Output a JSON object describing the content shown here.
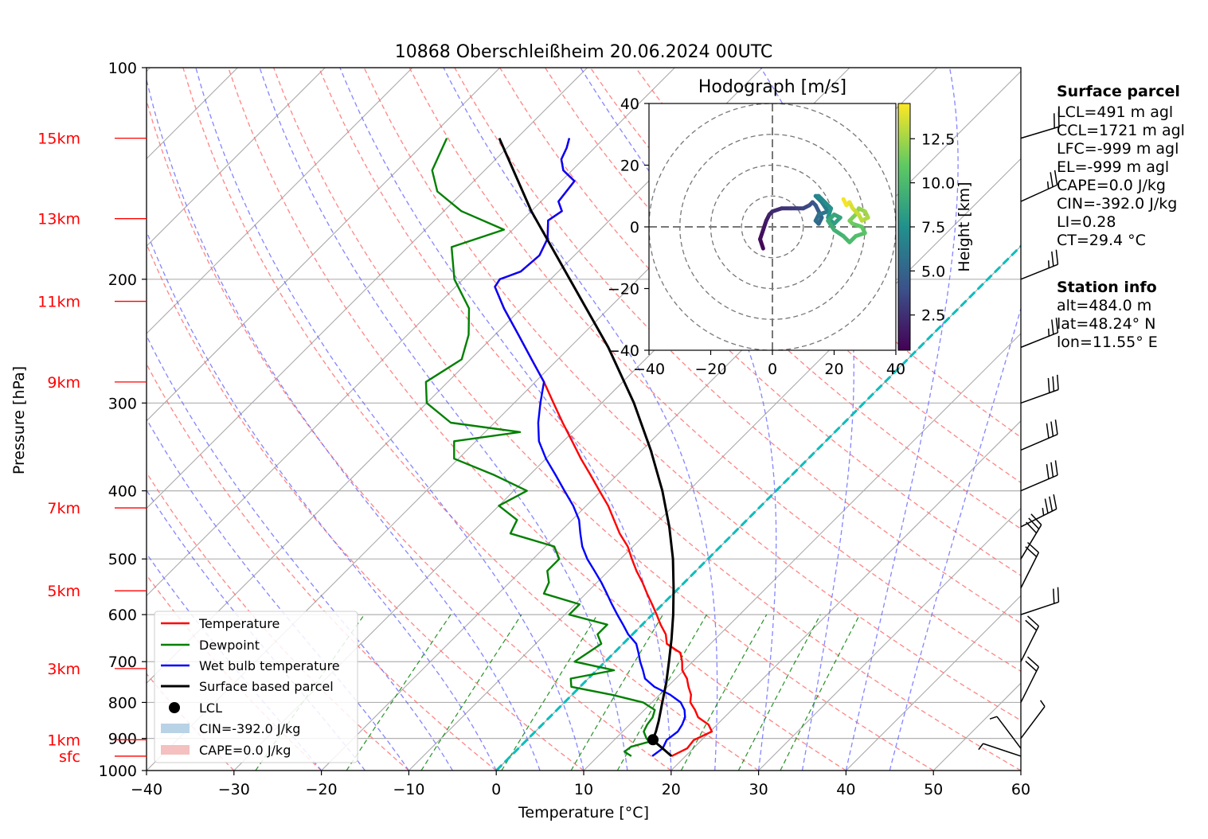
{
  "title": "10868 Oberschleißheim 20.06.2024 00UTC",
  "xlabel": "Temperature [°C]",
  "ylabel": "Pressure [hPa]",
  "colors": {
    "temperature": "#ff0000",
    "dewpoint": "#008000",
    "wetbulb": "#0000ff",
    "parcel": "#000000",
    "zero_isotherm": "#00bfbf",
    "dry_adiabat": "#ff6666",
    "moist_adiabat": "#6666ff",
    "mixing_ratio": "#008000",
    "isotherm": "#999999",
    "cin": "#b9d3e6",
    "cape": "#f4c0c0"
  },
  "height_labels": [
    "15km",
    "13km",
    "11km",
    "9km",
    "7km",
    "5km",
    "3km",
    "1km",
    "sfc"
  ],
  "legend": {
    "items": [
      "Temperature",
      "Dewpoint",
      "Wet bulb temperature",
      "Surface based parcel",
      "LCL",
      "CIN=-392.0 J/kg",
      "CAPE=0.0 J/kg"
    ]
  },
  "surface_parcel": {
    "heading": "Surface parcel",
    "lines": [
      "LCL=491 m agl",
      "CCL=1721 m agl",
      "LFC=-999 m agl",
      "EL=-999 m agl",
      "CAPE=0.0 J/kg",
      "CIN=-392.0 J/kg",
      "LI=0.28",
      "CT=29.4 °C"
    ]
  },
  "station_info": {
    "heading": "Station info",
    "lines": [
      "alt=484.0 m",
      "lat=48.24° N",
      "lon=11.55° E"
    ]
  },
  "hodograph": {
    "title": "Hodograph [m/s]",
    "colorbar_label": "Height [km]",
    "colorbar_ticks": [
      "2.5",
      "5.0",
      "7.5",
      "10.0",
      "12.5"
    ],
    "axis_ticks": [
      "−40",
      "−20",
      "0",
      "20",
      "40"
    ],
    "y_ticks": [
      "40",
      "20",
      "0",
      "−20",
      "−40"
    ]
  },
  "chart_data": {
    "type": "skew-t",
    "title": "10868 Oberschleißheim 20.06.2024 00UTC",
    "xlabel": "Temperature [°C]",
    "ylabel": "Pressure [hPa]",
    "xlim": [
      -40,
      60
    ],
    "ylim": [
      1000,
      100
    ],
    "log_pressure": true,
    "x_ticks": [
      "−40",
      "−30",
      "−20",
      "−10",
      "0",
      "10",
      "20",
      "30",
      "40",
      "50",
      "60"
    ],
    "x_tick_values": [
      -40,
      -30,
      -20,
      -10,
      0,
      10,
      20,
      30,
      40,
      50,
      60
    ],
    "y_ticks": [
      "100",
      "200",
      "300",
      "400",
      "500",
      "600",
      "700",
      "800",
      "900",
      "1000"
    ],
    "y_tick_values": [
      100,
      200,
      300,
      400,
      500,
      600,
      700,
      800,
      900,
      1000
    ],
    "grid": true,
    "legend_position": "bottom-left",
    "height_markers": [
      {
        "label": "15km",
        "p": 126
      },
      {
        "label": "13km",
        "p": 164
      },
      {
        "label": "11km",
        "p": 215
      },
      {
        "label": "9km",
        "p": 280
      },
      {
        "label": "7km",
        "p": 423
      },
      {
        "label": "5km",
        "p": 555
      },
      {
        "label": "3km",
        "p": 716
      },
      {
        "label": "1km",
        "p": 904
      },
      {
        "label": "sfc",
        "p": 954
      }
    ],
    "series": [
      {
        "name": "Temperature",
        "p": [
          954,
          930,
          905,
          880,
          860,
          840,
          820,
          800,
          780,
          760,
          740,
          720,
          700,
          680,
          660,
          640,
          620,
          600,
          580,
          560,
          540,
          520,
          500,
          480,
          460,
          440,
          420,
          400,
          380,
          360,
          340,
          320,
          300,
          280,
          260,
          240,
          220,
          205,
          200,
          195,
          185,
          175,
          165,
          160,
          155,
          145,
          140,
          135,
          130,
          126
        ],
        "t": [
          18.4,
          19.3,
          19.1,
          20.2,
          19.0,
          17.0,
          15.8,
          14.4,
          13.6,
          12.4,
          11.3,
          9.8,
          8.8,
          7.6,
          5.0,
          3.8,
          2.1,
          0.5,
          -1.2,
          -3.0,
          -4.8,
          -6.8,
          -8.7,
          -10.6,
          -13.0,
          -15.2,
          -17.5,
          -20.2,
          -23.0,
          -26.0,
          -29.0,
          -32.2,
          -35.5,
          -39.0,
          -43.0,
          -47.3,
          -52.0,
          -55.5,
          -55.8,
          -54.3,
          -54.0,
          -55.0,
          -57.0,
          -56.5,
          -58.0,
          -58.5,
          -61.0,
          -62.5,
          -63.2,
          -64.0
        ]
      },
      {
        "name": "Dewpoint",
        "p": [
          954,
          940,
          925,
          910,
          900,
          880,
          860,
          840,
          820,
          800,
          780,
          760,
          740,
          720,
          700,
          680,
          660,
          640,
          620,
          600,
          580,
          560,
          540,
          520,
          500,
          480,
          460,
          440,
          420,
          400,
          380,
          360,
          340,
          330,
          320,
          300,
          280,
          260,
          240,
          220,
          200,
          180,
          170,
          160,
          150,
          140,
          126
        ],
        "t": [
          13.8,
          12.5,
          12.7,
          14.2,
          13.5,
          12.4,
          12.0,
          11.8,
          11.2,
          9.0,
          4.5,
          -1.0,
          -2.0,
          2.0,
          -3.5,
          -3.0,
          -2.5,
          -4.0,
          -4.0,
          -9.5,
          -9.5,
          -14.8,
          -15.5,
          -17.0,
          -17.0,
          -19.0,
          -25.5,
          -26.3,
          -30.0,
          -28.5,
          -34.0,
          -40.5,
          -42.5,
          -36.0,
          -45.0,
          -50.0,
          -52.5,
          -51.0,
          -53.0,
          -56.0,
          -61.0,
          -65.0,
          -61.0,
          -68.0,
          -73.0,
          -76.0,
          -78.0
        ]
      },
      {
        "name": "Wet bulb temperature",
        "p": [
          954,
          930,
          905,
          880,
          860,
          840,
          820,
          800,
          780,
          760,
          740,
          720,
          700,
          680,
          660,
          640,
          620,
          600,
          580,
          560,
          540,
          520,
          500,
          480,
          460,
          440,
          420,
          400,
          380,
          360,
          340,
          320,
          300,
          280,
          260,
          240,
          220,
          205,
          200,
          195,
          185,
          175,
          165,
          160,
          155,
          145,
          140,
          135,
          130,
          126
        ],
        "t": [
          16.2,
          16.5,
          16.0,
          16.3,
          16.0,
          15.5,
          14.6,
          13.3,
          11.2,
          8.5,
          6.5,
          5.3,
          4.0,
          2.8,
          1.5,
          -0.5,
          -2.2,
          -4.0,
          -5.8,
          -7.6,
          -9.5,
          -11.6,
          -13.8,
          -15.8,
          -17.5,
          -19.2,
          -21.5,
          -24.2,
          -27.0,
          -30.0,
          -32.8,
          -35.0,
          -37.0,
          -39.0,
          -43.0,
          -47.3,
          -52.0,
          -55.5,
          -55.8,
          -54.3,
          -54.0,
          -55.0,
          -57.0,
          -56.5,
          -58.0,
          -58.5,
          -61.0,
          -62.5,
          -63.2,
          -64.0
        ]
      },
      {
        "name": "Surface based parcel",
        "p": [
          954,
          930,
          905,
          880,
          850,
          800,
          750,
          700,
          650,
          600,
          550,
          500,
          450,
          400,
          350,
          300,
          250,
          200,
          160,
          126
        ],
        "t": [
          18.4,
          16.5,
          14.4,
          13.8,
          12.9,
          11.2,
          9.4,
          7.3,
          5.0,
          2.4,
          -0.6,
          -4.0,
          -8.1,
          -13.0,
          -19.0,
          -26.3,
          -35.6,
          -47.8,
          -60.0,
          -72.0
        ]
      }
    ],
    "lcl": {
      "p": 904,
      "t": 14.4
    },
    "zero_isotherm_label": "",
    "hodograph_data": {
      "xlim": [
        -40,
        40
      ],
      "ylim": [
        -40,
        40
      ],
      "rings": [
        10,
        20,
        30,
        40
      ],
      "colorbar_range_km": [
        0.5,
        14.5
      ],
      "u": [
        -3,
        -4,
        -3,
        -2,
        -1,
        0,
        3,
        6,
        8,
        10,
        12,
        13,
        14,
        15,
        16,
        15,
        14,
        15,
        18,
        16,
        14,
        15,
        17,
        19,
        18,
        20,
        22,
        20,
        18,
        20,
        23,
        25,
        27,
        30,
        29,
        26,
        25,
        27,
        28,
        30,
        31,
        29,
        28,
        26,
        25,
        24,
        23
      ],
      "v": [
        -7,
        -4,
        -1,
        2,
        4,
        5,
        6,
        6,
        6,
        6,
        7,
        8,
        7,
        5,
        3,
        1,
        2,
        4,
        5,
        8,
        10,
        10,
        8,
        6,
        3,
        1,
        3,
        4,
        2,
        -1,
        -3,
        -5,
        -3,
        -2,
        0,
        1,
        2,
        4,
        6,
        5,
        3,
        2,
        4,
        6,
        8,
        7,
        9
      ],
      "z_km": [
        0.5,
        0.8,
        1.1,
        1.4,
        1.7,
        2.0,
        2.3,
        2.6,
        2.9,
        3.2,
        3.5,
        3.8,
        4.1,
        4.4,
        4.7,
        5.0,
        5.3,
        5.6,
        5.9,
        6.2,
        6.5,
        6.8,
        7.1,
        7.4,
        7.7,
        8.0,
        8.3,
        8.6,
        8.9,
        9.2,
        9.5,
        9.8,
        10.1,
        10.4,
        10.7,
        11.0,
        11.3,
        11.6,
        11.9,
        12.2,
        12.5,
        12.8,
        13.1,
        13.4,
        13.7,
        14.0,
        14.3
      ]
    },
    "wind_barbs": [
      {
        "p": 126,
        "u": -20,
        "v": 6
      },
      {
        "p": 155,
        "u": -22,
        "v": 10
      },
      {
        "p": 200,
        "u": -25,
        "v": 10
      },
      {
        "p": 250,
        "u": -25,
        "v": 10
      },
      {
        "p": 300,
        "u": -28,
        "v": 10
      },
      {
        "p": 350,
        "u": -28,
        "v": 12
      },
      {
        "p": 400,
        "u": -28,
        "v": 12
      },
      {
        "p": 450,
        "u": -30,
        "v": 15
      },
      {
        "p": 500,
        "u": -15,
        "v": 25
      },
      {
        "p": 550,
        "u": -10,
        "v": 20
      },
      {
        "p": 600,
        "u": -18,
        "v": 6
      },
      {
        "p": 700,
        "u": -10,
        "v": 20
      },
      {
        "p": 800,
        "u": -10,
        "v": 20
      },
      {
        "p": 900,
        "u": -3,
        "v": 4
      },
      {
        "p": 930,
        "u": 3,
        "v": 4
      },
      {
        "p": 954,
        "u": 3,
        "v": 1
      }
    ]
  }
}
